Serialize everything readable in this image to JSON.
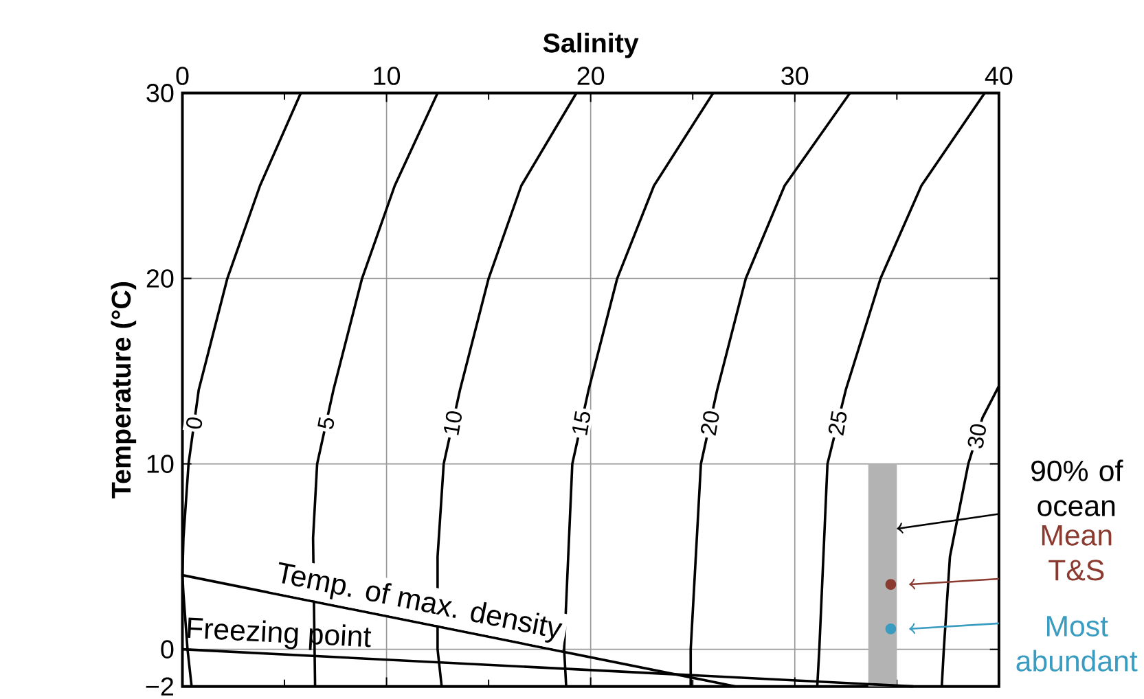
{
  "chart_data": {
    "type": "line",
    "xlabel": "Salinity",
    "ylabel": "Temperature (°C)",
    "xlim": [
      0,
      40
    ],
    "xticks": [
      0,
      10,
      20,
      30,
      40
    ],
    "ylim": [
      -2,
      30
    ],
    "yticks": [
      {
        "value": -2,
        "label": "−2"
      },
      0,
      10,
      20,
      30
    ],
    "grid": true,
    "legend": "right",
    "annotations": [
      {
        "text": "90% of ocean",
        "x": 35,
        "y": 6.5
      }
    ],
    "series": [
      {
        "type": "bar",
        "color": "#b3b3b3",
        "x": [
          34.3
        ],
        "base": [
          -2
        ],
        "values": [
          12
        ]
      },
      {
        "name": "0",
        "color": "#000000",
        "x": [
          0.45,
          0.25,
          0.05,
          0,
          0.05,
          0.3,
          0.8,
          2.2,
          3.8,
          5.8
        ],
        "values": [
          -2,
          0,
          3,
          4,
          6,
          10,
          14,
          20,
          25,
          30
        ]
      },
      {
        "name": "5",
        "color": "#000000",
        "x": [
          6.5,
          6.4,
          6.6,
          7.4,
          8.8,
          10.4,
          12.5
        ],
        "values": [
          -2,
          6,
          10,
          14,
          20,
          25,
          30
        ]
      },
      {
        "name": "10",
        "color": "#000000",
        "x": [
          12.7,
          12.5,
          12.5,
          12.8,
          13.6,
          15.0,
          16.6,
          19.3
        ],
        "values": [
          -2,
          0,
          5,
          10,
          14,
          20,
          25,
          30
        ]
      },
      {
        "name": "15",
        "color": "#000000",
        "x": [
          18.8,
          18.7,
          19.1,
          19.9,
          21.3,
          23.1,
          26.0
        ],
        "values": [
          -2,
          0,
          10,
          14,
          20,
          25,
          30
        ]
      },
      {
        "name": "20",
        "color": "#000000",
        "x": [
          24.9,
          24.9,
          25.4,
          26.2,
          27.6,
          29.5,
          32.7
        ],
        "values": [
          -2,
          0,
          10,
          14,
          20,
          25,
          30
        ]
      },
      {
        "name": "25",
        "color": "#000000",
        "x": [
          31.1,
          31.2,
          31.6,
          32.5,
          34.2,
          36.2,
          39.3
        ],
        "values": [
          -2,
          0,
          10,
          14,
          20,
          25,
          30
        ]
      },
      {
        "name": "30",
        "color": "#000000",
        "x": [
          37.2,
          37.3,
          37.6,
          38.5,
          39.2,
          40
        ],
        "values": [
          -2,
          0,
          5,
          10,
          12.5,
          14.2
        ]
      },
      {
        "name": "Temp. of max. density",
        "color": "#000000",
        "x": [
          0,
          27.1
        ],
        "values": [
          4,
          -2
        ]
      },
      {
        "name": "Freezing point",
        "color": "#000000",
        "x": [
          0,
          35.8
        ],
        "values": [
          0,
          -2
        ]
      },
      {
        "type": "scatter",
        "name": "Mean T&S",
        "color": "#8b3a30",
        "x": [
          34.7
        ],
        "values": [
          3.5
        ]
      },
      {
        "type": "scatter",
        "name": "Most abundant",
        "color": "#3a9cc0",
        "x": [
          34.7
        ],
        "values": [
          1.1
        ]
      }
    ]
  }
}
